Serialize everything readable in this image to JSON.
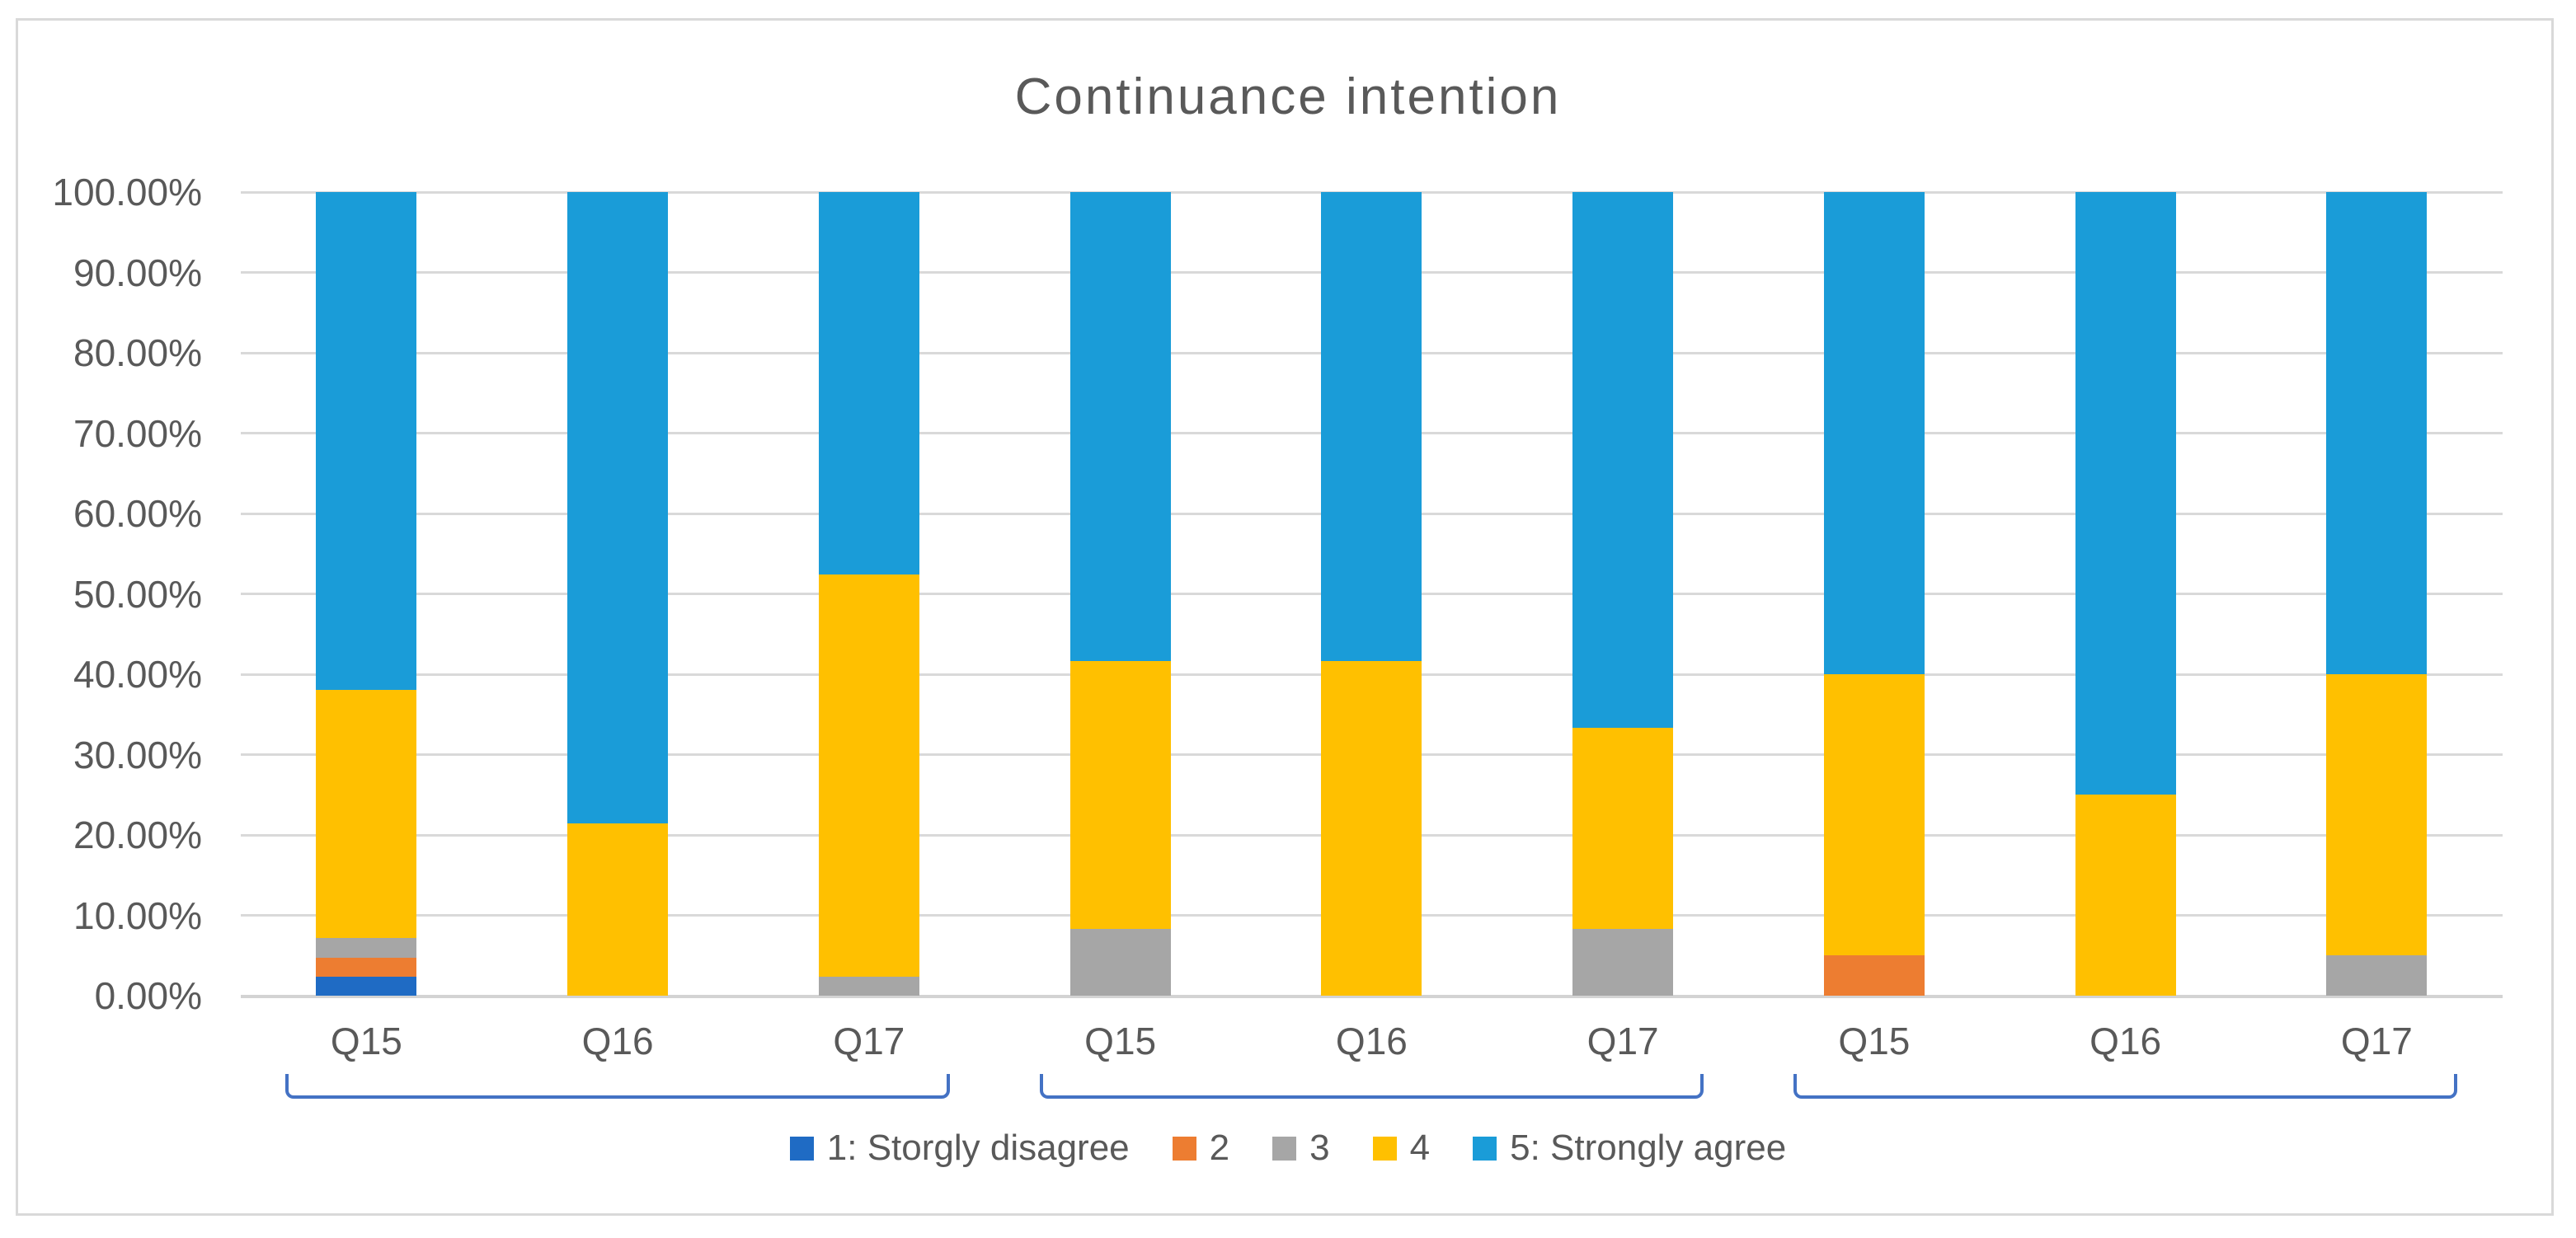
{
  "chart_data": {
    "type": "bar",
    "stacked": true,
    "percent_stacked": true,
    "title": "Continuance intention",
    "categories": [
      "Q15",
      "Q16",
      "Q17",
      "Q15",
      "Q16",
      "Q17",
      "Q15",
      "Q16",
      "Q17"
    ],
    "groups": [
      {
        "start": 0,
        "end": 2
      },
      {
        "start": 3,
        "end": 5
      },
      {
        "start": 6,
        "end": 8
      }
    ],
    "series": [
      {
        "name": "1: Storgly disagree",
        "color": "#1f6bc4",
        "values": [
          2.38,
          0,
          0,
          0,
          0,
          0,
          0,
          0,
          0
        ]
      },
      {
        "name": "2",
        "color": "#ed7d31",
        "values": [
          2.38,
          0,
          0,
          0,
          0,
          0,
          5.0,
          0,
          0
        ]
      },
      {
        "name": "3",
        "color": "#a6a6a6",
        "values": [
          2.38,
          0,
          2.38,
          8.33,
          0,
          8.33,
          0,
          0,
          5.0
        ]
      },
      {
        "name": "4",
        "color": "#ffc000",
        "values": [
          30.95,
          21.43,
          50.0,
          33.33,
          41.67,
          25.0,
          35.0,
          25.0,
          35.0
        ]
      },
      {
        "name": "5: Strongly agree",
        "color": "#1a9cd8",
        "values": [
          61.91,
          78.57,
          47.62,
          58.34,
          58.33,
          66.67,
          60.0,
          75.0,
          60.0
        ]
      }
    ],
    "y_axis": {
      "min": 0,
      "max": 100,
      "step": 10,
      "tick_labels": [
        "100.00%",
        "90.00%",
        "80.00%",
        "70.00%",
        "60.00%",
        "50.00%",
        "40.00%",
        "30.00%",
        "20.00%",
        "10.00%",
        "0.00%"
      ]
    },
    "legend_position": "bottom",
    "gridlines": true,
    "colors": {
      "gridline": "#d9d9d9",
      "axis_line": "#d3d3d3",
      "chart_border": "#d9d9d9",
      "text": "#595959",
      "group_bracket": "#4472c4",
      "background": "#ffffff"
    }
  }
}
